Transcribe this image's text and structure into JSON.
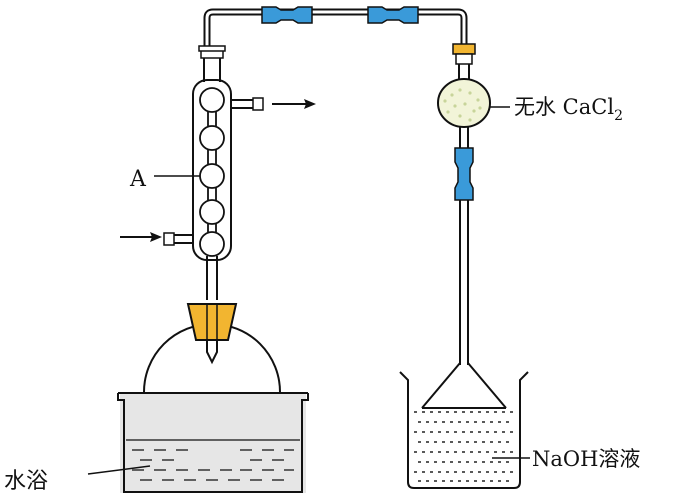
{
  "labels": {
    "condenser": "A",
    "drying_agent_prefix": "无水 CaCl",
    "drying_agent_subscript": "2",
    "absorber": "NaOH溶液",
    "water_bath": "水浴"
  },
  "colors": {
    "stroke": "#111111",
    "tube_connector": "#3a9ad9",
    "stopper": "#f2b530",
    "cap": "#f2b530",
    "bath_fill": "#e6e6e6",
    "drying_fill": "#f2f4d8",
    "liquid_dash": "#222222"
  },
  "icons": [
    "arrow-right-icon",
    "arrow-right-icon"
  ]
}
